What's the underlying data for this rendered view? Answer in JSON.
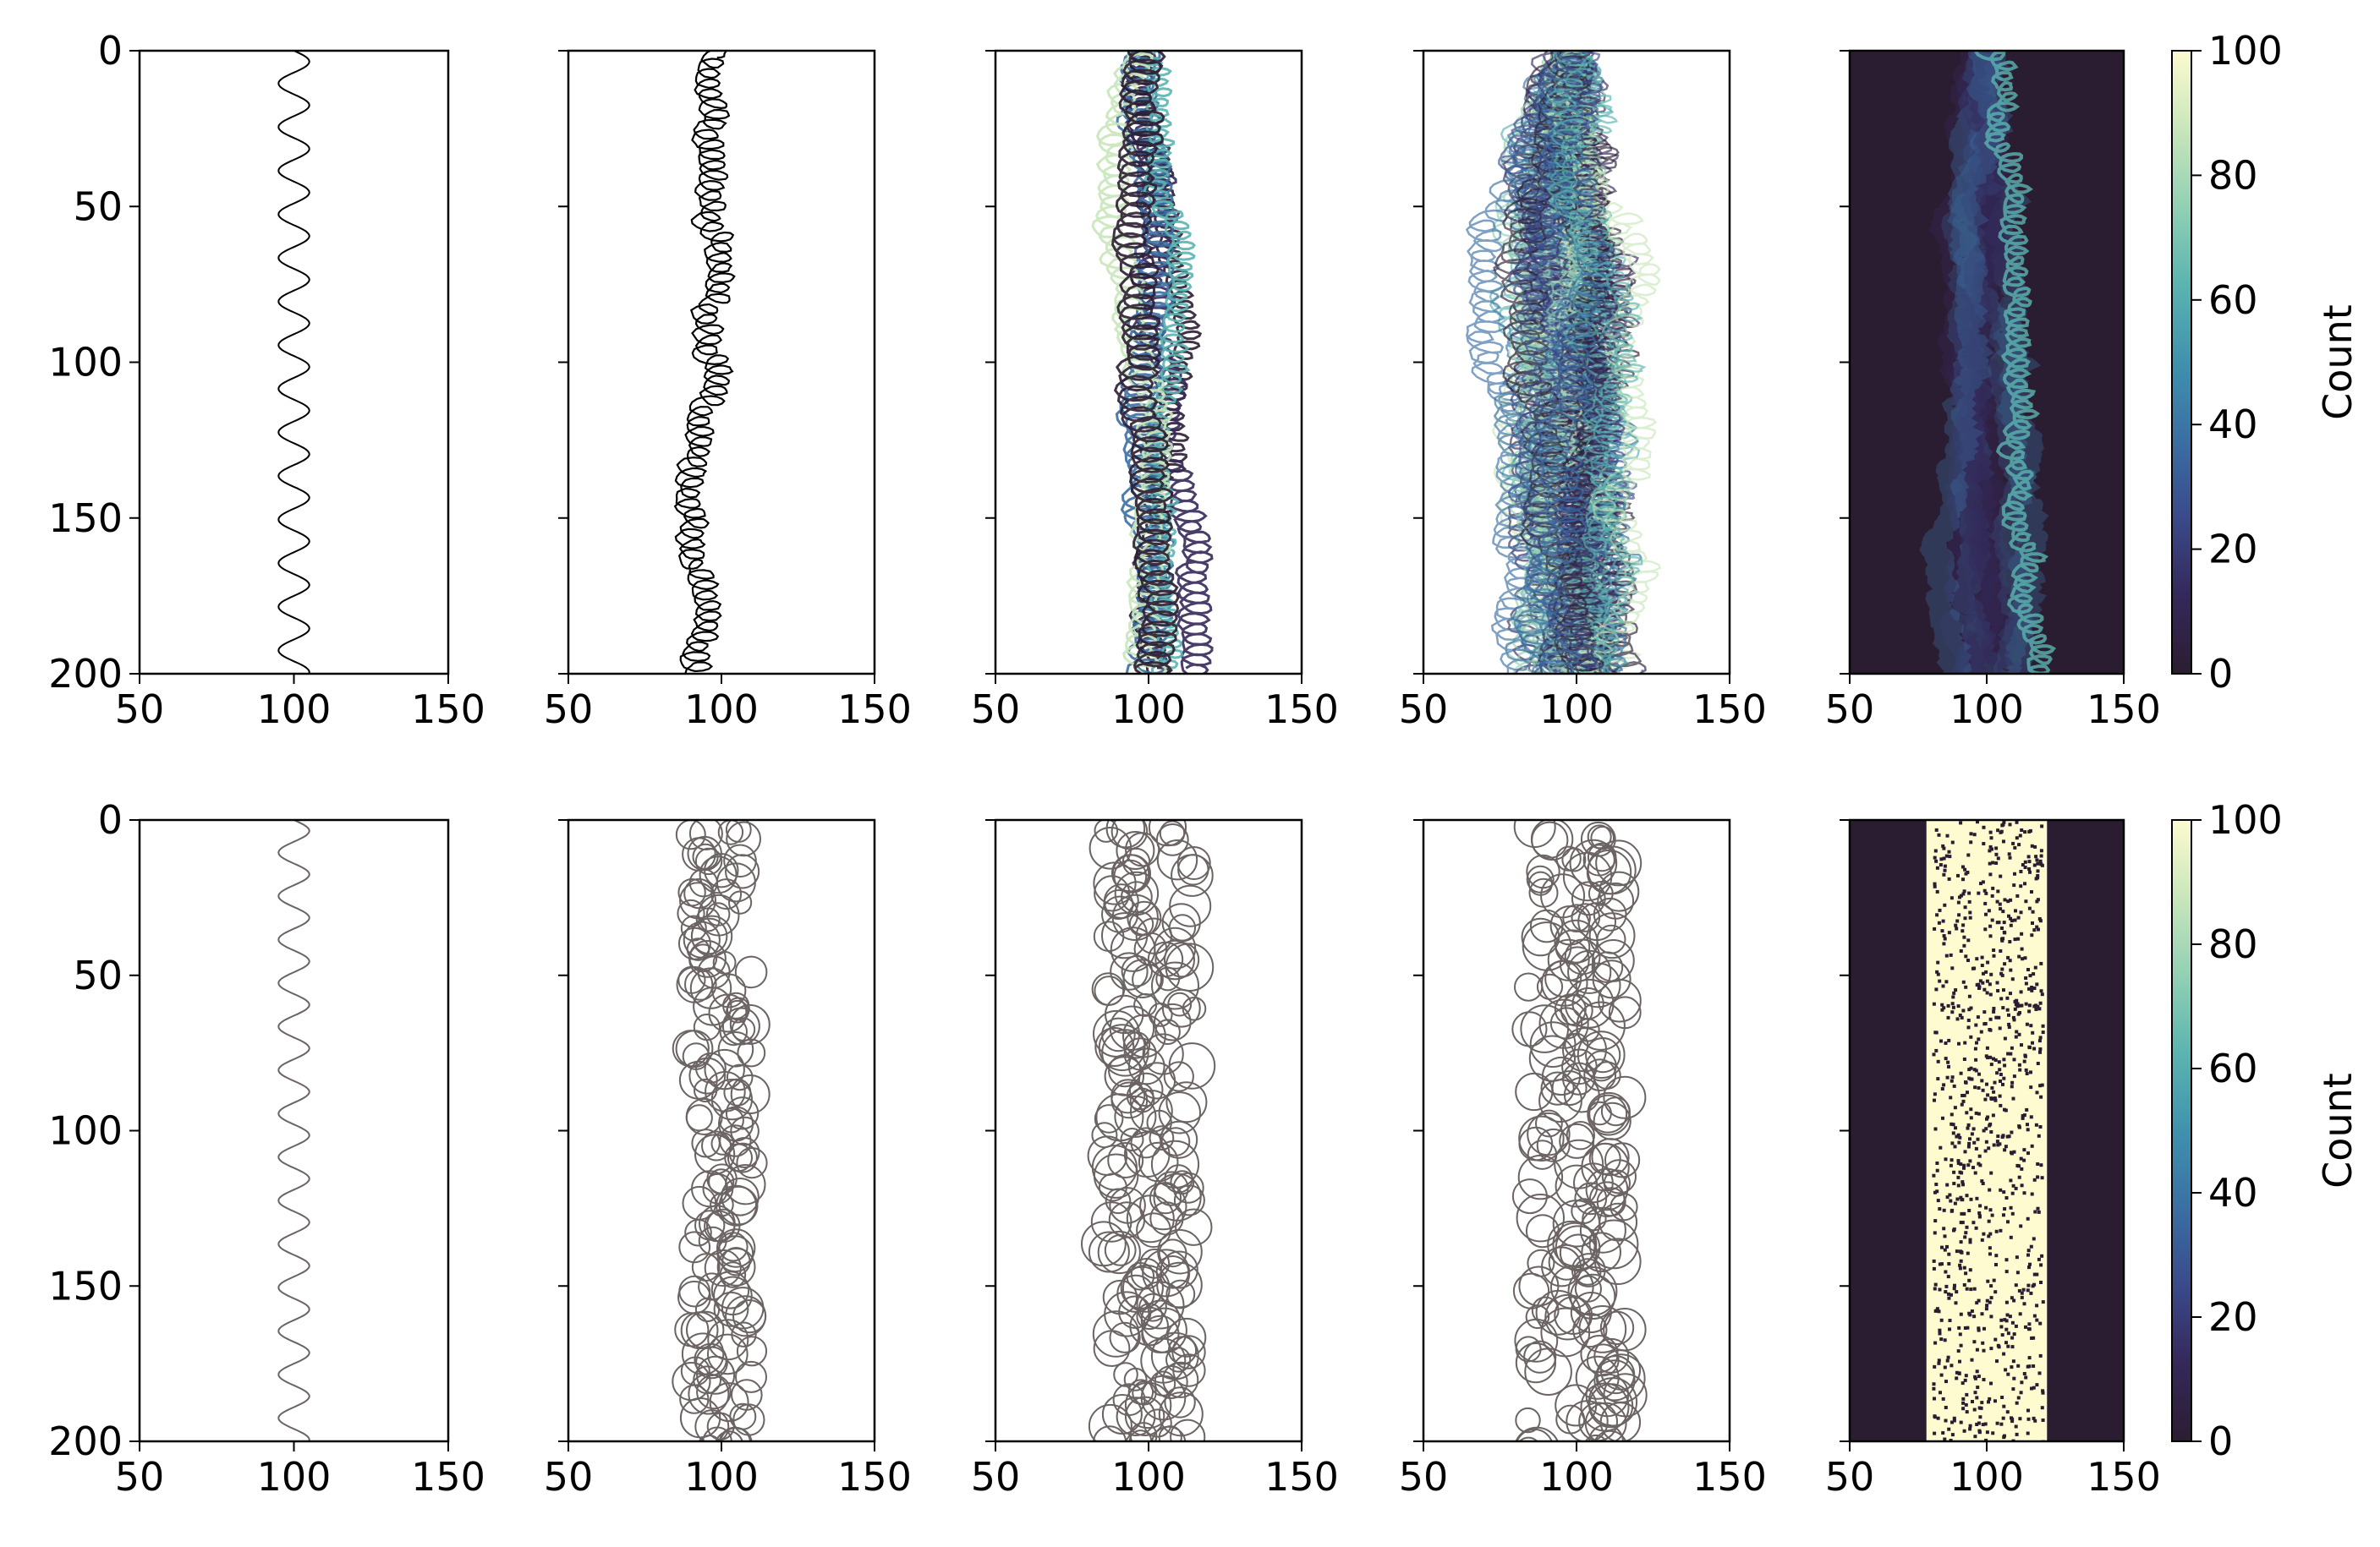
{
  "chart_data": {
    "type": "line",
    "layout": "2x5 grid of panels",
    "axis_defaults": {
      "xlim": [
        50,
        150
      ],
      "ylim": [
        200,
        0
      ],
      "y_inverted": true,
      "xticks": [
        50,
        100,
        150
      ],
      "yticks": [
        0,
        50,
        100,
        150,
        200
      ],
      "xtick_labels": [
        "50",
        "100",
        "150"
      ],
      "ytick_labels": [
        "0",
        "50",
        "100",
        "150",
        "200"
      ],
      "grid": false
    },
    "colorbar": {
      "label": "Count",
      "range": [
        0,
        100
      ],
      "ticks": [
        0,
        20,
        40,
        60,
        80,
        100
      ],
      "tick_labels": [
        "0",
        "20",
        "40",
        "60",
        "80",
        "100"
      ],
      "colors": [
        "#2b1d31",
        "#35285a",
        "#3a4a8a",
        "#3b6fa3",
        "#3f92ad",
        "#5bb4b0",
        "#92d0b4",
        "#c9e6bb",
        "#fdfbcf"
      ]
    },
    "panels": [
      {
        "row": 1,
        "col": 1,
        "kind": "sine",
        "center": 100,
        "amplitude": 5,
        "period": 14,
        "color": "#000000"
      },
      {
        "row": 1,
        "col": 2,
        "kind": "meander",
        "center": 100,
        "count": 1,
        "color": "#000000"
      },
      {
        "row": 1,
        "col": 3,
        "kind": "meander-ensemble",
        "center": 100,
        "count": 6,
        "colors": [
          "#2b1d31",
          "#35285a",
          "#3b6fa3",
          "#5bb4b0",
          "#c9e6bb"
        ]
      },
      {
        "row": 1,
        "col": 4,
        "kind": "meander-ensemble",
        "center": 100,
        "count": 40,
        "colors": [
          "#2b1d31",
          "#35285a",
          "#3a4a8a",
          "#3b6fa3",
          "#5bb4b0",
          "#92d0b4",
          "#c9e6bb"
        ]
      },
      {
        "row": 1,
        "col": 5,
        "kind": "heatmap",
        "background": "#2b1d31",
        "center": 100,
        "colorbar": true
      },
      {
        "row": 2,
        "col": 1,
        "kind": "sine",
        "center": 100,
        "amplitude": 5,
        "period": 14,
        "color": "#6b6463"
      },
      {
        "row": 2,
        "col": 2,
        "kind": "loops",
        "center": 100,
        "width": 32,
        "color": "#6b6463"
      },
      {
        "row": 2,
        "col": 3,
        "kind": "loops",
        "center": 100,
        "width": 42,
        "color": "#6b6463"
      },
      {
        "row": 2,
        "col": 4,
        "kind": "loops",
        "center": 100,
        "width": 44,
        "color": "#6b6463"
      },
      {
        "row": 2,
        "col": 5,
        "kind": "heatmap-saturated",
        "background": "#2b1d31",
        "fill": "#fdfbcf",
        "band": [
          78,
          122
        ],
        "colorbar": true
      }
    ]
  }
}
